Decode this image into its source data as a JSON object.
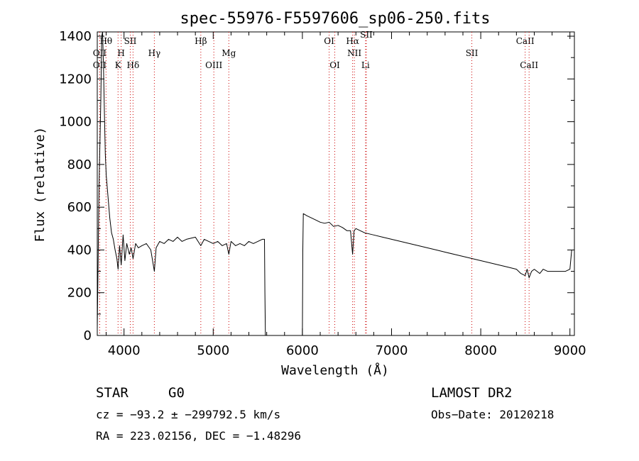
{
  "chart_data": {
    "type": "line",
    "title": "spec-55976-F5597606_sp06-250.fits",
    "xlabel": "Wavelength (Å)",
    "ylabel": "Flux (relative)",
    "xlim": [
      3700,
      9050
    ],
    "ylim": [
      0,
      1420
    ],
    "xticks": [
      4000,
      5000,
      6000,
      7000,
      8000,
      9000
    ],
    "yticks": [
      0,
      200,
      400,
      600,
      800,
      1000,
      1200,
      1400
    ],
    "grid": false,
    "series": [
      {
        "x": [
          3700,
          3720,
          3740,
          3750,
          3760,
          3770,
          3780,
          3790,
          3800,
          3820,
          3840,
          3860,
          3880,
          3900,
          3920,
          3933,
          3950,
          3968,
          3990,
          4010,
          4030,
          4060,
          4080,
          4101,
          4130,
          4160,
          4200,
          4250,
          4300,
          4340,
          4360,
          4400,
          4450,
          4500,
          4550,
          4600,
          4650,
          4700,
          4750,
          4800,
          4861,
          4900,
          4950,
          5000,
          5050,
          5100,
          5150,
          5175,
          5200,
          5250,
          5300,
          5350,
          5400,
          5450,
          5500,
          5550,
          5575,
          5580,
          5585,
          5600,
          5950,
          5980,
          5990,
          6000,
          6005,
          6010,
          6050,
          6100,
          6150,
          6200,
          6250,
          6300,
          6350,
          6400,
          6450,
          6500,
          6540,
          6563,
          6580,
          6600,
          6650,
          6700,
          6750,
          6800,
          6900,
          7000,
          7100,
          7200,
          7300,
          7400,
          7500,
          7600,
          7700,
          7800,
          7900,
          8000,
          8100,
          8200,
          8300,
          8400,
          8450,
          8498,
          8520,
          8542,
          8570,
          8600,
          8662,
          8700,
          8750,
          8800,
          8850,
          8900,
          8950,
          9000,
          9020
        ],
        "y": [
          30,
          700,
          1100,
          1400,
          1420,
          1250,
          1050,
          850,
          750,
          650,
          550,
          480,
          450,
          400,
          360,
          310,
          420,
          330,
          470,
          350,
          430,
          380,
          410,
          360,
          430,
          410,
          420,
          430,
          400,
          300,
          410,
          440,
          430,
          450,
          440,
          460,
          440,
          450,
          455,
          460,
          420,
          450,
          440,
          430,
          440,
          420,
          430,
          380,
          440,
          420,
          430,
          420,
          440,
          430,
          440,
          450,
          450,
          200,
          0,
          0,
          0,
          0,
          0,
          0,
          400,
          570,
          560,
          550,
          540,
          530,
          525,
          530,
          510,
          515,
          505,
          490,
          490,
          380,
          490,
          500,
          490,
          480,
          475,
          470,
          460,
          450,
          440,
          430,
          420,
          410,
          400,
          390,
          380,
          370,
          360,
          350,
          340,
          330,
          320,
          310,
          290,
          280,
          310,
          270,
          300,
          310,
          290,
          310,
          300,
          300,
          300,
          300,
          300,
          310,
          400
        ]
      }
    ],
    "spectral_lines": [
      {
        "label": "Hθ",
        "x": 3798,
        "row": 1
      },
      {
        "label": "OII",
        "x": 3727,
        "row": 2
      },
      {
        "label": "OII",
        "x": 3727,
        "row": 3
      },
      {
        "label": "SII",
        "x": 4070,
        "row": 1
      },
      {
        "label": "H",
        "x": 3968,
        "row": 2
      },
      {
        "label": "K",
        "x": 3933,
        "row": 3
      },
      {
        "label": "Hδ",
        "x": 4101,
        "row": 3
      },
      {
        "label": "Hγ",
        "x": 4340,
        "row": 2
      },
      {
        "label": "Hβ",
        "x": 4861,
        "row": 1
      },
      {
        "label": "OIII",
        "x": 5007,
        "row": 3
      },
      {
        "label": "Mg",
        "x": 5175,
        "row": 2
      },
      {
        "label": "OI",
        "x": 6300,
        "row": 1
      },
      {
        "label": "OI",
        "x": 6363,
        "row": 3
      },
      {
        "label": "Hα",
        "x": 6563,
        "row": 1
      },
      {
        "label": "NII",
        "x": 6583,
        "row": 2
      },
      {
        "label": "Li",
        "x": 6708,
        "row": 3
      },
      {
        "label": "SII",
        "x": 6717,
        "row": 0
      },
      {
        "label": "SII",
        "x": 7900,
        "row": 2
      },
      {
        "label": "CaII",
        "x": 8498,
        "row": 1
      },
      {
        "label": "CaII",
        "x": 8542,
        "row": 3
      }
    ],
    "line_color": "#000000",
    "marker_color": "#cc0000"
  },
  "info": {
    "object_class": "STAR",
    "subclass": "G0",
    "survey": "LAMOST DR2",
    "velocity": "cz = −93.2 ± −299792.5 km/s",
    "obs_date": "Obs−Date: 20120218",
    "coords": "RA = 223.02156, DEC =  −1.48296"
  }
}
